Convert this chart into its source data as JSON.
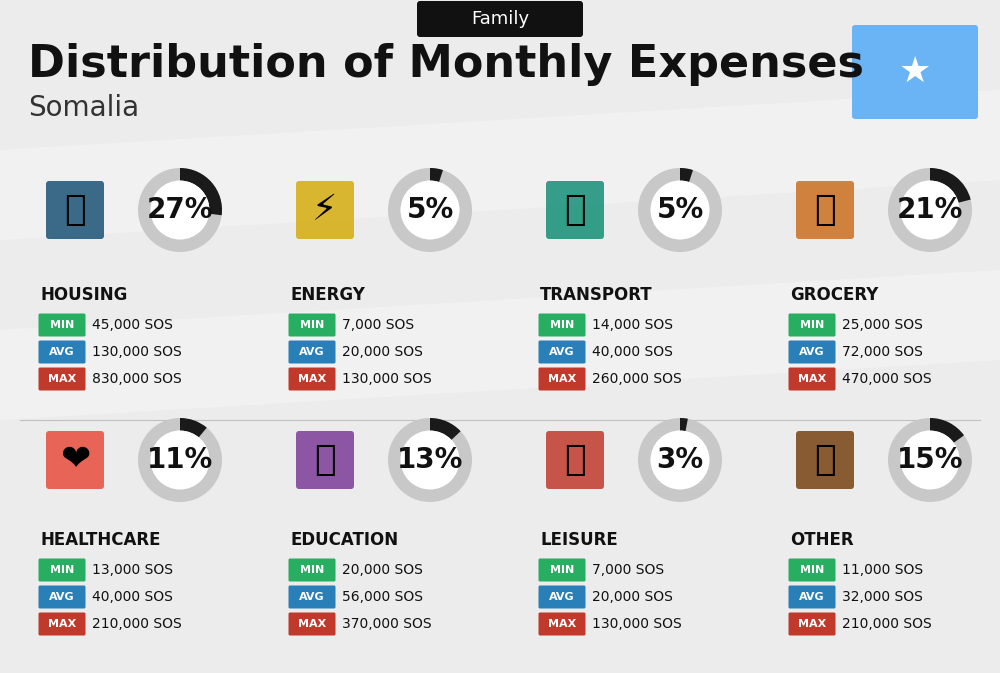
{
  "title": "Distribution of Monthly Expenses",
  "subtitle": "Somalia",
  "header_label": "Family",
  "bg_color": "#ececec",
  "categories": [
    {
      "name": "HOUSING",
      "pct": 27,
      "min": "45,000 SOS",
      "avg": "130,000 SOS",
      "max": "830,000 SOS",
      "col": 0,
      "row": 0
    },
    {
      "name": "ENERGY",
      "pct": 5,
      "min": "7,000 SOS",
      "avg": "20,000 SOS",
      "max": "130,000 SOS",
      "col": 1,
      "row": 0
    },
    {
      "name": "TRANSPORT",
      "pct": 5,
      "min": "14,000 SOS",
      "avg": "40,000 SOS",
      "max": "260,000 SOS",
      "col": 2,
      "row": 0
    },
    {
      "name": "GROCERY",
      "pct": 21,
      "min": "25,000 SOS",
      "avg": "72,000 SOS",
      "max": "470,000 SOS",
      "col": 3,
      "row": 0
    },
    {
      "name": "HEALTHCARE",
      "pct": 11,
      "min": "13,000 SOS",
      "avg": "40,000 SOS",
      "max": "210,000 SOS",
      "col": 0,
      "row": 1
    },
    {
      "name": "EDUCATION",
      "pct": 13,
      "min": "20,000 SOS",
      "avg": "56,000 SOS",
      "max": "370,000 SOS",
      "col": 1,
      "row": 1
    },
    {
      "name": "LEISURE",
      "pct": 3,
      "min": "7,000 SOS",
      "avg": "20,000 SOS",
      "max": "130,000 SOS",
      "col": 2,
      "row": 1
    },
    {
      "name": "OTHER",
      "pct": 15,
      "min": "11,000 SOS",
      "avg": "32,000 SOS",
      "max": "210,000 SOS",
      "col": 3,
      "row": 1
    }
  ],
  "min_color": "#27ae60",
  "avg_color": "#2980b9",
  "max_color": "#c0392b",
  "donut_bg": "#c8c8c8",
  "donut_fg": "#1a1a1a",
  "title_fontsize": 32,
  "subtitle_fontsize": 20,
  "cat_fontsize": 12,
  "pct_fontsize": 20,
  "val_fontsize": 10,
  "label_fontsize": 8,
  "flag_color": "#6ab4f5",
  "header_bg": "#111111",
  "stripe_color": "#d8d8d8"
}
